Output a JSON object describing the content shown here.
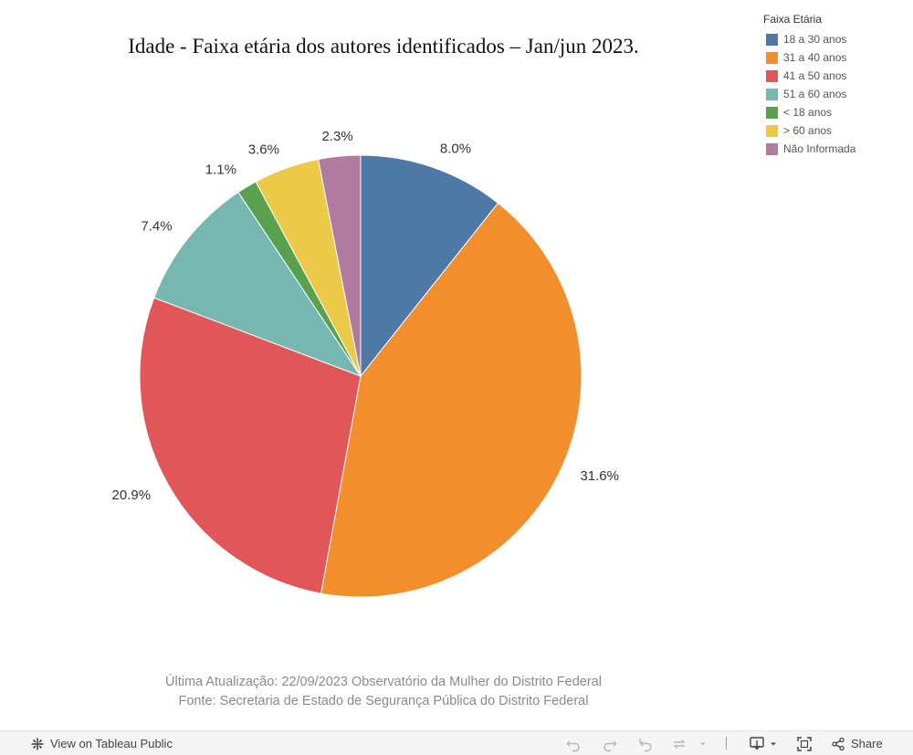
{
  "chart_data": {
    "type": "pie",
    "title": "Idade - Faixa etária dos autores identificados – Jan/jun 2023.",
    "legend_title": "Faixa Etária",
    "legend_position": "top-right",
    "legend": [
      {
        "label": "18 a 30 anos",
        "color": "#4e79a7"
      },
      {
        "label": "31 a 40 anos",
        "color": "#f28e2b"
      },
      {
        "label": "41 a 50 anos",
        "color": "#e15759"
      },
      {
        "label": "51 a 60 anos",
        "color": "#76b7b2"
      },
      {
        "label": "< 18 anos",
        "color": "#59a14f"
      },
      {
        "label": "> 60 anos",
        "color": "#edc948"
      },
      {
        "label": "Não Informada",
        "color": "#b07aa1"
      }
    ],
    "slices": [
      {
        "category": "18 a 30 anos",
        "value": 8.0,
        "label": "8.0%",
        "color": "#4e79a7"
      },
      {
        "category": "31 a 40 anos",
        "value": 31.6,
        "label": "31.6%",
        "color": "#f28e2b"
      },
      {
        "category": "41 a 50 anos",
        "value": 20.9,
        "label": "20.9%",
        "color": "#e15759"
      },
      {
        "category": "51 a 60 anos",
        "value": 7.4,
        "label": "7.4%",
        "color": "#76b7b2"
      },
      {
        "category": "< 18 anos",
        "value": 1.1,
        "label": "1.1%",
        "color": "#59a14f"
      },
      {
        "category": "> 60 anos",
        "value": 3.6,
        "label": "3.6%",
        "color": "#edc948"
      },
      {
        "category": "Não Informada",
        "value": 2.3,
        "label": "2.3%",
        "color": "#b07aa1"
      }
    ]
  },
  "footer": {
    "line1": "Última Atualização: 22/09/2023 Observatório da Mulher do Distrito Federal",
    "line2": "Fonte: Secretaria de Estado de Segurança Pública do Distrito Federal"
  },
  "toolbar": {
    "view_label": "View on Tableau Public",
    "share_label": "Share"
  }
}
